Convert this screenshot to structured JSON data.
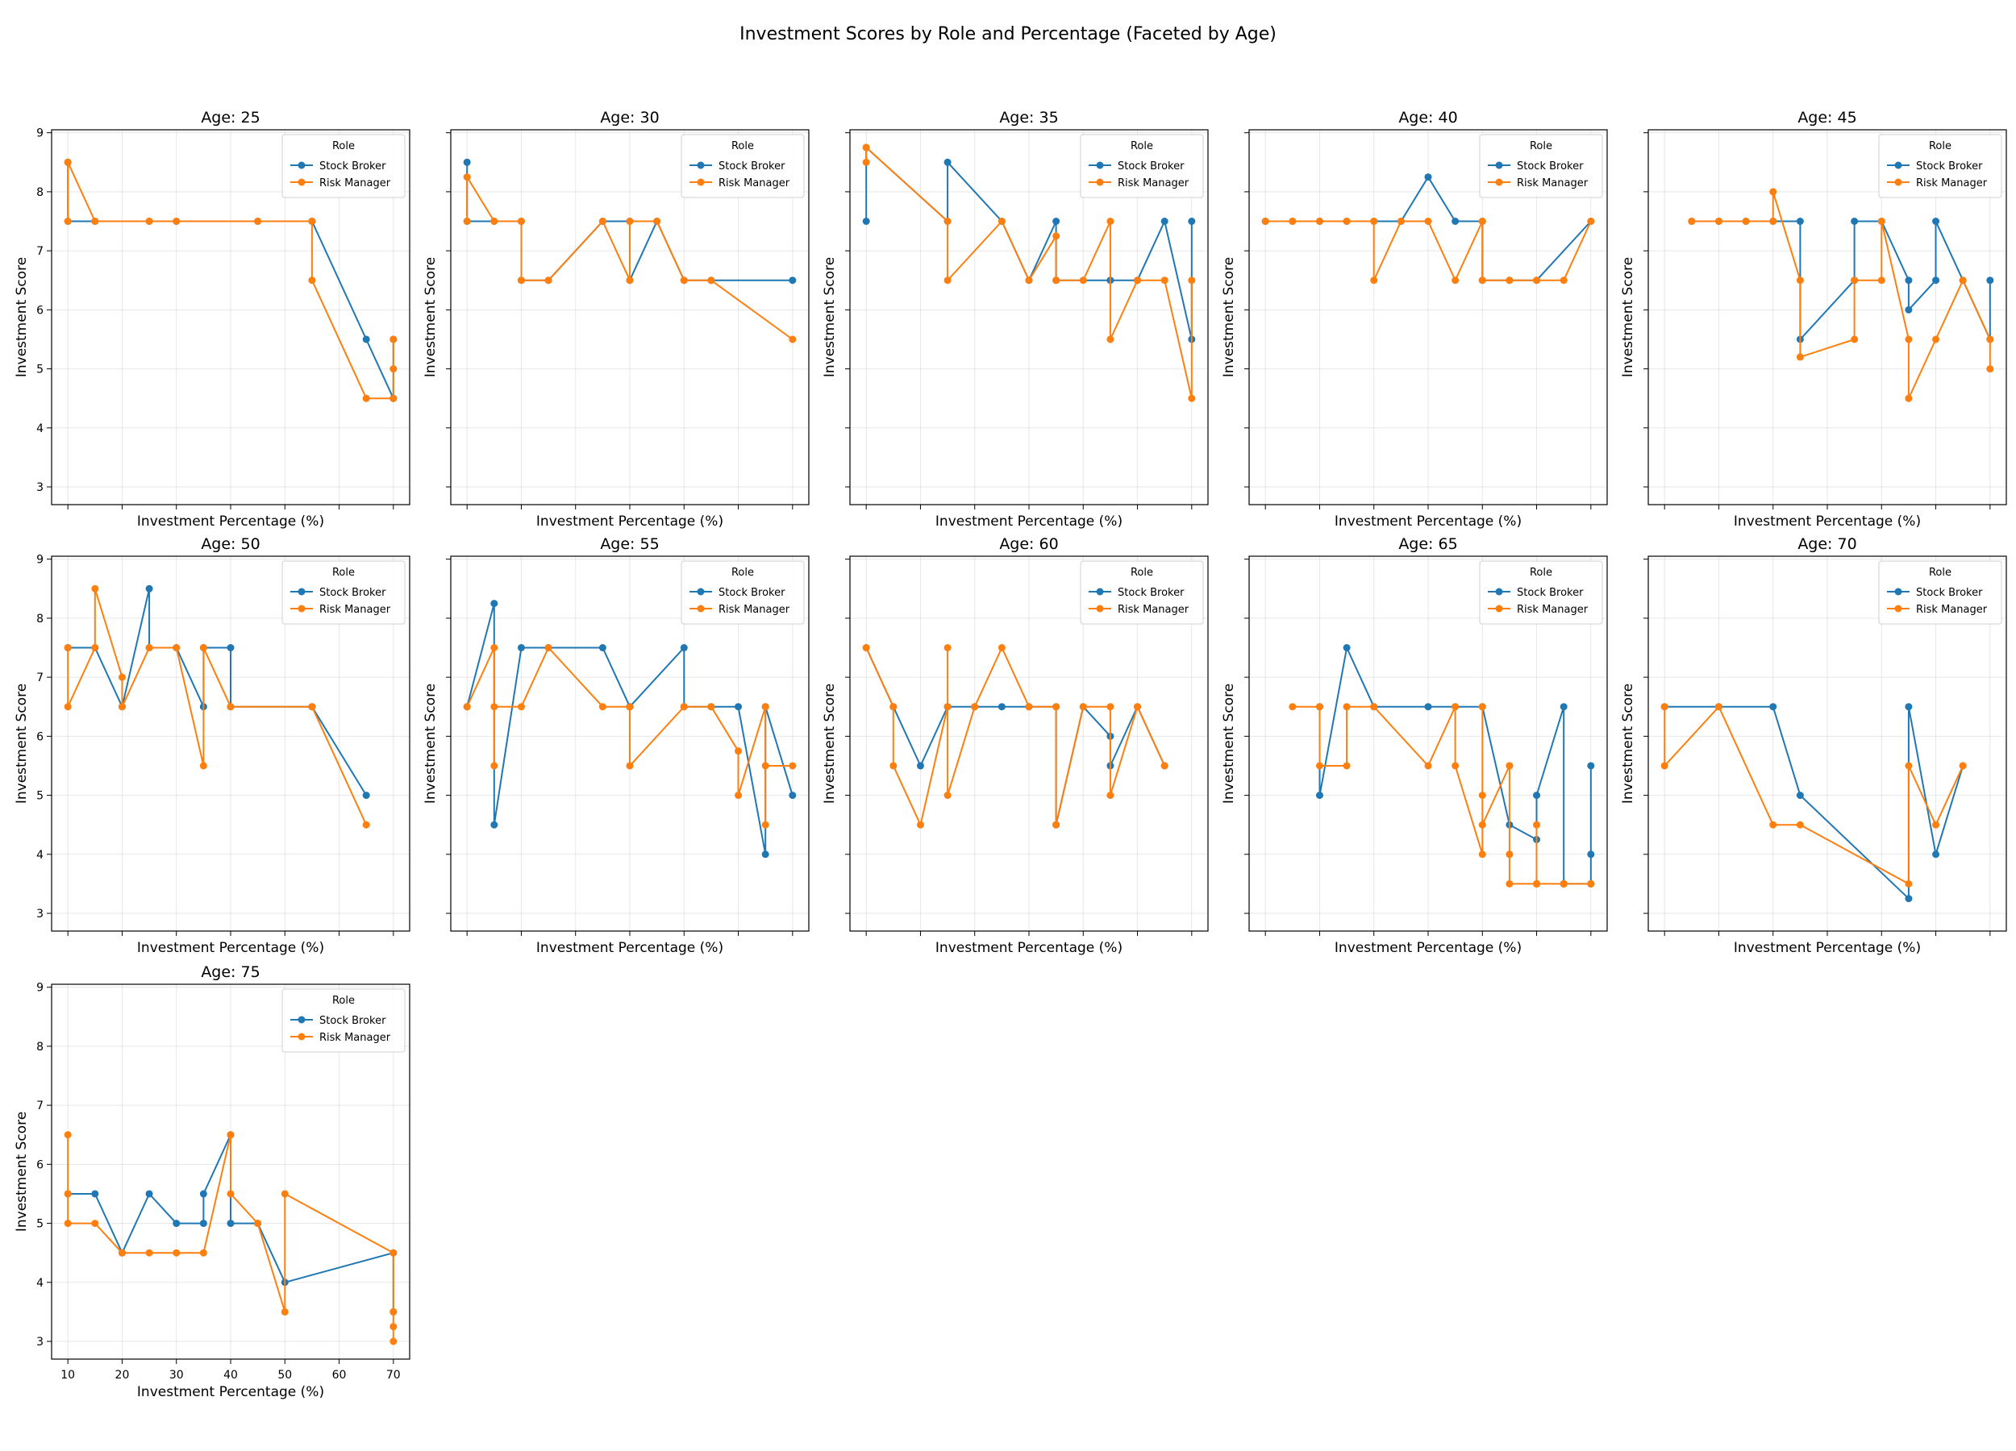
{
  "chart_data": {
    "type": "line",
    "title": "Investment Scores by Role and Percentage (Faceted by Age)",
    "facet_title_prefix": "Age: ",
    "xlabel": "Investment Percentage (%)",
    "ylabel": "Investment Score",
    "xlim": [
      7,
      73
    ],
    "ylim": [
      2.7,
      9.05
    ],
    "xticks": [
      10,
      20,
      30,
      40,
      50,
      60,
      70
    ],
    "yticks": [
      3,
      4,
      5,
      6,
      7,
      8,
      9
    ],
    "grid": true,
    "legend": {
      "title": "Role",
      "placement": "upper right"
    },
    "series_names": [
      "Stock Broker",
      "Risk Manager"
    ],
    "colors": {
      "Stock Broker": "#1f77b4",
      "Risk Manager": "#ff7f0e"
    },
    "facets": [
      {
        "age": "25",
        "series": [
          {
            "name": "Stock Broker",
            "x": [
              10,
              10,
              15,
              25,
              30,
              45,
              55,
              55,
              65,
              70,
              70,
              70
            ],
            "y": [
              8.5,
              7.5,
              7.5,
              7.5,
              7.5,
              7.5,
              7.5,
              7.5,
              5.5,
              4.5,
              5.5,
              4.5
            ]
          },
          {
            "name": "Risk Manager",
            "x": [
              10,
              10,
              15,
              25,
              30,
              45,
              55,
              55,
              65,
              70,
              70,
              70
            ],
            "y": [
              7.5,
              8.5,
              7.5,
              7.5,
              7.5,
              7.5,
              7.5,
              6.5,
              4.5,
              4.5,
              5.5,
              5.0
            ]
          }
        ]
      },
      {
        "age": "30",
        "series": [
          {
            "name": "Stock Broker",
            "x": [
              10,
              10,
              15,
              20,
              20,
              25,
              35,
              40,
              40,
              45,
              50,
              55,
              70
            ],
            "y": [
              8.5,
              7.5,
              7.5,
              7.5,
              6.5,
              6.5,
              7.5,
              7.5,
              6.5,
              7.5,
              6.5,
              6.5,
              6.5
            ]
          },
          {
            "name": "Risk Manager",
            "x": [
              10,
              10,
              15,
              20,
              20,
              25,
              35,
              40,
              40,
              45,
              50,
              55,
              70
            ],
            "y": [
              7.5,
              8.25,
              7.5,
              7.5,
              6.5,
              6.5,
              7.5,
              6.5,
              7.5,
              7.5,
              6.5,
              6.5,
              5.5
            ]
          }
        ]
      },
      {
        "age": "35",
        "series": [
          {
            "name": "Stock Broker",
            "x": [
              10,
              10,
              25,
              25,
              35,
              40,
              45,
              45,
              55,
              60,
              65,
              70,
              70
            ],
            "y": [
              7.5,
              8.75,
              7.5,
              8.5,
              7.5,
              6.5,
              7.5,
              6.5,
              6.5,
              6.5,
              7.5,
              5.5,
              7.5
            ]
          },
          {
            "name": "Risk Manager",
            "x": [
              10,
              10,
              25,
              25,
              35,
              40,
              45,
              45,
              50,
              55,
              55,
              60,
              65,
              70,
              70
            ],
            "y": [
              8.5,
              8.75,
              7.5,
              6.5,
              7.5,
              6.5,
              7.25,
              6.5,
              6.5,
              7.5,
              5.5,
              6.5,
              6.5,
              4.5,
              6.5
            ]
          }
        ]
      },
      {
        "age": "40",
        "series": [
          {
            "name": "Stock Broker",
            "x": [
              10,
              15,
              20,
              25,
              30,
              35,
              40,
              45,
              50,
              50,
              55,
              60,
              70
            ],
            "y": [
              7.5,
              7.5,
              7.5,
              7.5,
              7.5,
              7.5,
              8.25,
              7.5,
              7.5,
              6.5,
              6.5,
              6.5,
              7.5
            ]
          },
          {
            "name": "Risk Manager",
            "x": [
              10,
              15,
              20,
              25,
              30,
              30,
              35,
              40,
              45,
              50,
              50,
              55,
              60,
              65,
              70
            ],
            "y": [
              7.5,
              7.5,
              7.5,
              7.5,
              7.5,
              6.5,
              7.5,
              7.5,
              6.5,
              7.5,
              6.5,
              6.5,
              6.5,
              6.5,
              7.5
            ]
          }
        ]
      },
      {
        "age": "45",
        "series": [
          {
            "name": "Stock Broker",
            "x": [
              15,
              20,
              25,
              30,
              35,
              35,
              45,
              45,
              50,
              55,
              55,
              60,
              60,
              65,
              70,
              70
            ],
            "y": [
              7.5,
              7.5,
              7.5,
              7.5,
              7.5,
              5.5,
              6.5,
              7.5,
              7.5,
              6.5,
              6.0,
              6.5,
              7.5,
              6.5,
              5.5,
              6.5
            ]
          },
          {
            "name": "Risk Manager",
            "x": [
              15,
              20,
              25,
              30,
              30,
              35,
              35,
              45,
              45,
              50,
              50,
              55,
              55,
              60,
              65,
              70,
              70
            ],
            "y": [
              7.5,
              7.5,
              7.5,
              7.5,
              8.0,
              6.5,
              5.2,
              5.5,
              6.5,
              6.5,
              7.5,
              5.5,
              4.5,
              5.5,
              6.5,
              5.5,
              5.0
            ]
          }
        ]
      },
      {
        "age": "50",
        "series": [
          {
            "name": "Stock Broker",
            "x": [
              10,
              15,
              20,
              25,
              25,
              30,
              35,
              35,
              40,
              40,
              55,
              65
            ],
            "y": [
              7.5,
              7.5,
              6.5,
              8.5,
              7.5,
              7.5,
              6.5,
              7.5,
              7.5,
              6.5,
              6.5,
              5.0
            ]
          },
          {
            "name": "Risk Manager",
            "x": [
              10,
              10,
              15,
              15,
              20,
              20,
              25,
              30,
              35,
              35,
              40,
              55,
              65
            ],
            "y": [
              7.5,
              6.5,
              7.5,
              8.5,
              7.0,
              6.5,
              7.5,
              7.5,
              5.5,
              7.5,
              6.5,
              6.5,
              4.5
            ]
          }
        ]
      },
      {
        "age": "55",
        "series": [
          {
            "name": "Stock Broker",
            "x": [
              10,
              15,
              15,
              20,
              25,
              35,
              40,
              40,
              50,
              50,
              55,
              60,
              65,
              65,
              70
            ],
            "y": [
              6.5,
              8.25,
              4.5,
              7.5,
              7.5,
              7.5,
              6.5,
              6.5,
              7.5,
              6.5,
              6.5,
              6.5,
              4.0,
              6.5,
              5.0
            ]
          },
          {
            "name": "Risk Manager",
            "x": [
              10,
              15,
              15,
              15,
              20,
              25,
              35,
              40,
              40,
              50,
              55,
              60,
              60,
              65,
              65,
              65,
              70
            ],
            "y": [
              6.5,
              7.5,
              5.5,
              6.5,
              6.5,
              7.5,
              6.5,
              6.5,
              5.5,
              6.5,
              6.5,
              5.75,
              5.0,
              6.5,
              4.5,
              5.5,
              5.5
            ]
          }
        ]
      },
      {
        "age": "60",
        "series": [
          {
            "name": "Stock Broker",
            "x": [
              10,
              15,
              20,
              25,
              30,
              35,
              40,
              45,
              45,
              50,
              55,
              55,
              60,
              65
            ],
            "y": [
              7.5,
              6.5,
              5.5,
              6.5,
              6.5,
              6.5,
              6.5,
              6.5,
              4.5,
              6.5,
              6.0,
              5.5,
              6.5,
              5.5
            ]
          },
          {
            "name": "Risk Manager",
            "x": [
              10,
              15,
              15,
              20,
              25,
              25,
              25,
              30,
              35,
              40,
              45,
              45,
              50,
              55,
              55,
              60,
              65
            ],
            "y": [
              7.5,
              6.5,
              5.5,
              4.5,
              6.5,
              7.5,
              5.0,
              6.5,
              7.5,
              6.5,
              6.5,
              4.5,
              6.5,
              6.5,
              5.0,
              6.5,
              5.5
            ]
          }
        ]
      },
      {
        "age": "65",
        "series": [
          {
            "name": "Stock Broker",
            "x": [
              20,
              20,
              25,
              30,
              40,
              45,
              50,
              55,
              60,
              60,
              65,
              65,
              70,
              70,
              70
            ],
            "y": [
              6.5,
              5.0,
              7.5,
              6.5,
              6.5,
              6.5,
              6.5,
              4.5,
              4.25,
              5.0,
              6.5,
              3.5,
              3.5,
              4.0,
              5.5
            ]
          },
          {
            "name": "Risk Manager",
            "x": [
              15,
              20,
              20,
              25,
              25,
              30,
              40,
              45,
              45,
              50,
              50,
              50,
              50,
              55,
              55,
              55,
              55,
              60,
              60,
              60,
              60,
              65,
              65,
              65,
              70,
              70
            ],
            "y": [
              6.5,
              6.5,
              5.5,
              5.5,
              6.5,
              6.5,
              5.5,
              6.5,
              5.5,
              4.0,
              5.0,
              6.5,
              4.5,
              5.5,
              5.5,
              4.0,
              3.5,
              3.5,
              4.5,
              3.5,
              3.5,
              3.5,
              3.5,
              3.5,
              3.5,
              3.5
            ]
          }
        ]
      },
      {
        "age": "70",
        "series": [
          {
            "name": "Stock Broker",
            "x": [
              10,
              20,
              30,
              35,
              55,
              55,
              60,
              65
            ],
            "y": [
              6.5,
              6.5,
              6.5,
              5.0,
              3.25,
              6.5,
              4.0,
              5.5
            ]
          },
          {
            "name": "Risk Manager",
            "x": [
              10,
              10,
              20,
              30,
              35,
              55,
              55,
              60,
              65
            ],
            "y": [
              6.5,
              5.5,
              6.5,
              4.5,
              4.5,
              3.5,
              5.5,
              4.5,
              5.5
            ]
          }
        ]
      },
      {
        "age": "75",
        "series": [
          {
            "name": "Stock Broker",
            "x": [
              10,
              15,
              20,
              25,
              30,
              35,
              35,
              40,
              40,
              45,
              50,
              70,
              70
            ],
            "y": [
              5.5,
              5.5,
              4.5,
              5.5,
              5.0,
              5.0,
              5.5,
              6.5,
              5.0,
              5.0,
              4.0,
              4.5,
              3.5
            ]
          },
          {
            "name": "Risk Manager",
            "x": [
              10,
              10,
              10,
              15,
              20,
              25,
              30,
              35,
              40,
              40,
              45,
              50,
              50,
              70,
              70,
              70,
              70
            ],
            "y": [
              5.5,
              6.5,
              5.0,
              5.0,
              4.5,
              4.5,
              4.5,
              4.5,
              6.5,
              5.5,
              5.0,
              3.5,
              5.5,
              4.5,
              3.0,
              3.25,
              3.5
            ]
          }
        ]
      }
    ]
  }
}
